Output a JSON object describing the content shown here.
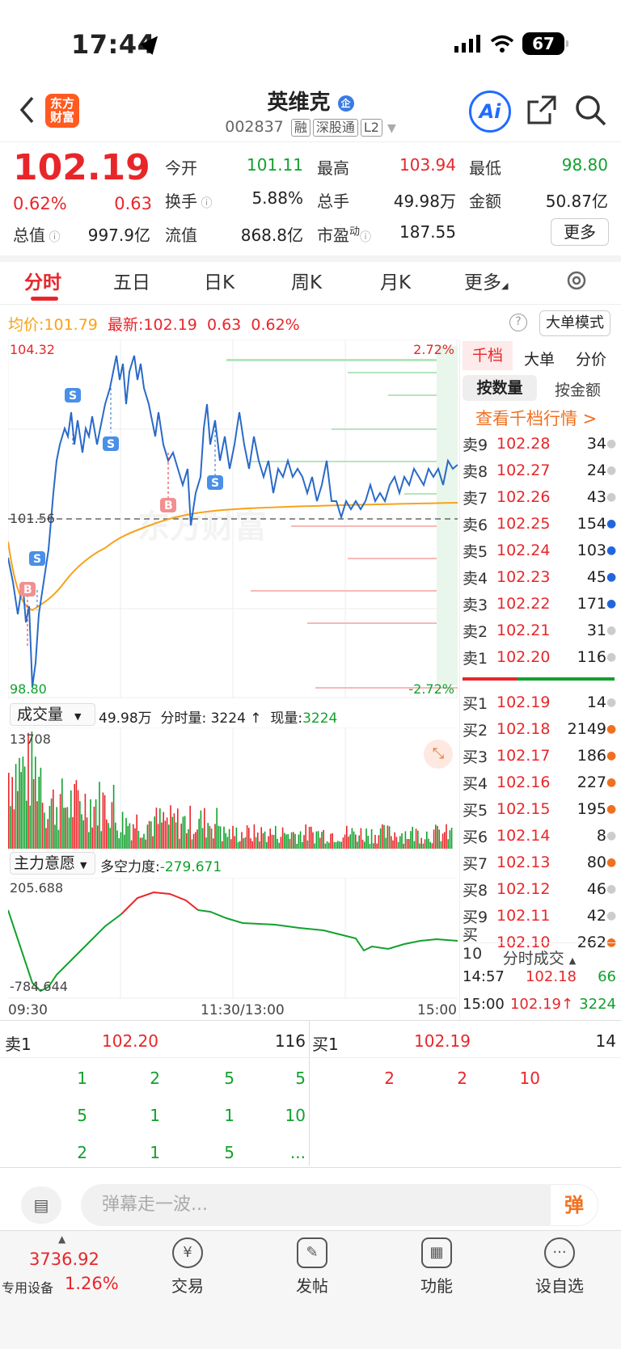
{
  "status_bar": {
    "time": "17:44",
    "battery": "67"
  },
  "header": {
    "title": "英维克",
    "title_badge": "企",
    "code": "002837",
    "tags": [
      "融",
      "深股通",
      "L2"
    ],
    "logo": "东方财富",
    "ai": "Ai"
  },
  "quote": {
    "price": "102.19",
    "pct": "0.62%",
    "chg": "0.63",
    "fields": [
      {
        "label": "今开",
        "value": "101.11",
        "color": "green"
      },
      {
        "label": "最高",
        "value": "103.94",
        "color": "red"
      },
      {
        "label": "最低",
        "value": "98.80",
        "color": "green"
      },
      {
        "label": "换手",
        "value": "5.88%",
        "color": "dark"
      },
      {
        "label": "总手",
        "value": "49.98万",
        "color": "dark"
      },
      {
        "label": "金额",
        "value": "50.87亿",
        "color": "dark"
      },
      {
        "label": "总值",
        "value": "997.9亿",
        "color": "dark"
      },
      {
        "label": "流值",
        "value": "868.8亿",
        "color": "dark"
      },
      {
        "label": "市盈",
        "value": "187.55",
        "color": "dark",
        "sup": "动"
      }
    ],
    "more": "更多"
  },
  "tabs": [
    "分时",
    "五日",
    "日K",
    "周K",
    "月K",
    "更多"
  ],
  "avg_line": {
    "avg_label": "均价:",
    "avg": "101.79",
    "latest_label": "最新:",
    "latest": "102.19",
    "chg": "0.63",
    "pct": "0.62%",
    "mode": "大单模式"
  },
  "chart": {
    "y_high": "104.32",
    "y_low": "98.80",
    "pct_high": "2.72%",
    "pct_low": "-2.72%",
    "pre_close": "101.56",
    "times": [
      "09:30",
      "11:30/13:00",
      "15:00"
    ],
    "watermark": "东方财富"
  },
  "volume": {
    "selector": "成交量",
    "total": "49.98万",
    "tick_label": "分时量: 3224 ↑",
    "now_label": "现量:",
    "now": "3224",
    "max": "13708"
  },
  "force": {
    "selector": "主力意愿",
    "label": "多空力度:",
    "value": "-279.671",
    "max": "205.688",
    "min": "-784.644"
  },
  "side_tabs": [
    "千档",
    "大单",
    "分价"
  ],
  "side_sub": [
    "按数量",
    "按金额"
  ],
  "side_link": "查看千档行情 >",
  "asks": [
    {
      "l": "卖9",
      "p": "102.28",
      "v": "34",
      "dot": "#ccc"
    },
    {
      "l": "卖8",
      "p": "102.27",
      "v": "24",
      "dot": "#ccc"
    },
    {
      "l": "卖7",
      "p": "102.26",
      "v": "43",
      "dot": "#ccc"
    },
    {
      "l": "卖6",
      "p": "102.25",
      "v": "154",
      "dot": "#2266dd"
    },
    {
      "l": "卖5",
      "p": "102.24",
      "v": "103",
      "dot": "#2266dd"
    },
    {
      "l": "卖4",
      "p": "102.23",
      "v": "45",
      "dot": "#2266dd"
    },
    {
      "l": "卖3",
      "p": "102.22",
      "v": "171",
      "dot": "#2266dd"
    },
    {
      "l": "卖2",
      "p": "102.21",
      "v": "31",
      "dot": "#ccc"
    },
    {
      "l": "卖1",
      "p": "102.20",
      "v": "116",
      "dot": "#ccc"
    }
  ],
  "bids": [
    {
      "l": "买1",
      "p": "102.19",
      "v": "14",
      "dot": "#ccc"
    },
    {
      "l": "买2",
      "p": "102.18",
      "v": "2149",
      "dot": "#f07020"
    },
    {
      "l": "买3",
      "p": "102.17",
      "v": "186",
      "dot": "#f07020"
    },
    {
      "l": "买4",
      "p": "102.16",
      "v": "227",
      "dot": "#f07020"
    },
    {
      "l": "买5",
      "p": "102.15",
      "v": "195",
      "dot": "#f07020"
    },
    {
      "l": "买6",
      "p": "102.14",
      "v": "8",
      "dot": "#ccc"
    },
    {
      "l": "买7",
      "p": "102.13",
      "v": "80",
      "dot": "#f07020"
    },
    {
      "l": "买8",
      "p": "102.12",
      "v": "46",
      "dot": "#ccc"
    },
    {
      "l": "买9",
      "p": "102.11",
      "v": "42",
      "dot": "#ccc"
    },
    {
      "l": "买10",
      "p": "102.10",
      "v": "262",
      "dot": "#f07020"
    }
  ],
  "trades_title": "分时成交",
  "trades": [
    {
      "t": "14:57",
      "p": "102.18",
      "v": "66",
      "vc": "green",
      "arrow": ""
    },
    {
      "t": "15:00",
      "p": "102.19",
      "v": "3224",
      "vc": "green",
      "arrow": "↑"
    }
  ],
  "queue": {
    "ask_label": "卖1",
    "ask_price": "102.20",
    "ask_vol": "116",
    "bid_label": "买1",
    "bid_price": "102.19",
    "bid_vol": "14",
    "ask_cells": [
      "1",
      "2",
      "5",
      "5",
      "5",
      "1",
      "1",
      "10",
      "2",
      "1",
      "5",
      "..."
    ],
    "bid_cells": [
      "2",
      "2",
      "10"
    ]
  },
  "danmu_placeholder": "弹幕走一波...",
  "danmu_btn": "弹",
  "index": {
    "value": "3736.92",
    "pct": "1.26%",
    "label": "专用设备"
  },
  "nav": [
    {
      "label": "交易",
      "icon": "¥"
    },
    {
      "label": "发帖",
      "icon": "✎"
    },
    {
      "label": "功能",
      "icon": "▦"
    },
    {
      "label": "设自选",
      "icon": "···"
    }
  ],
  "colors": {
    "up": "#e8262a",
    "down": "#12a12d",
    "price_line": "#2a6ac8",
    "avg_line": "#f7a21b"
  }
}
